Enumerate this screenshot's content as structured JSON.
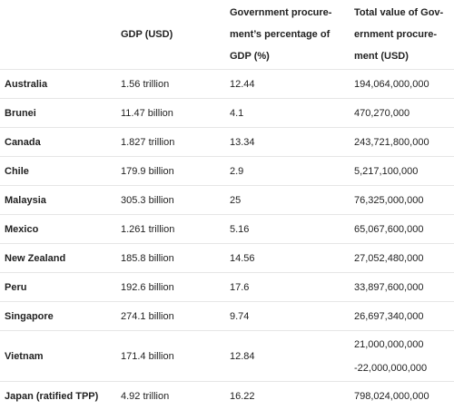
{
  "header": {
    "country": "",
    "gdp": "GDP (USD)",
    "percentage": "Government procure-ment’s percentage of GDP (%)",
    "total": "Total value of Gov-ernment procure-ment (USD)"
  },
  "rows": [
    {
      "country": "Australia",
      "gdp": "1.56 trillion",
      "percentage": "12.44",
      "total": "194,064,000,000"
    },
    {
      "country": "Brunei",
      "gdp": "11.47 billion",
      "percentage": "4.1",
      "total": "470,270,000"
    },
    {
      "country": "Canada",
      "gdp": "1.827 trillion",
      "percentage": "13.34",
      "total": "243,721,800,000"
    },
    {
      "country": "Chile",
      "gdp": "179.9 billion",
      "percentage": "2.9",
      "total": "5,217,100,000"
    },
    {
      "country": "Malaysia",
      "gdp": "305.3 billion",
      "percentage": "25",
      "total": "76,325,000,000"
    },
    {
      "country": "Mexico",
      "gdp": "1.261 trillion",
      "percentage": "5.16",
      "total": "65,067,600,000"
    },
    {
      "country": "New Zealand",
      "gdp": "185.8 billion",
      "percentage": "14.56",
      "total": "27,052,480,000"
    },
    {
      "country": "Peru",
      "gdp": "192.6 billion",
      "percentage": "17.6",
      "total": "33,897,600,000"
    },
    {
      "country": "Singapore",
      "gdp": "274.1 billion",
      "percentage": "9.74",
      "total": "26,697,340,000"
    },
    {
      "country": "Vietnam",
      "gdp": "171.4 billion",
      "percentage": "12.84",
      "total_line1": "21,000,000,000",
      "total_line2": "-22,000,000,000"
    },
    {
      "country": "Japan (ratified TPP)",
      "gdp": "4.92 trillion",
      "percentage": "16.22",
      "total": "798,024,000,000"
    }
  ]
}
